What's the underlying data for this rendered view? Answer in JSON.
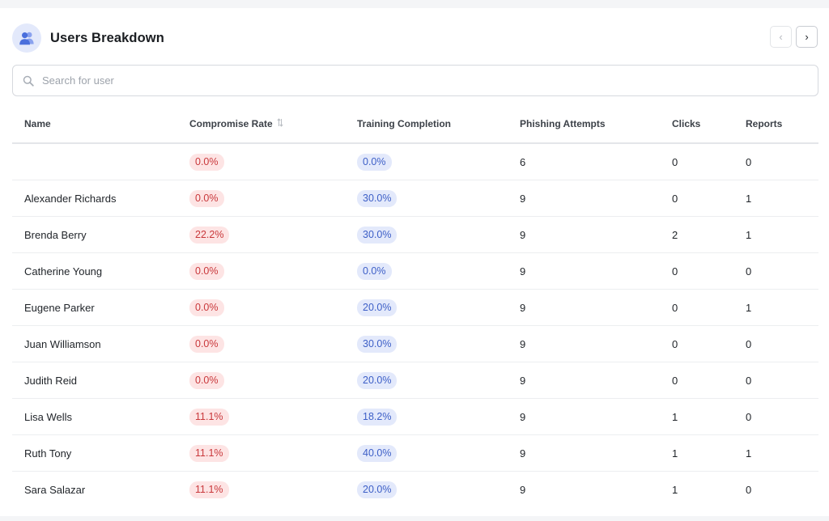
{
  "header": {
    "title": "Users Breakdown",
    "icon": "users-icon",
    "prev_label": "‹",
    "next_label": "›"
  },
  "search": {
    "placeholder": "Search for user",
    "value": ""
  },
  "table": {
    "columns": [
      "Name",
      "Compromise Rate",
      "Training Completion",
      "Phishing Attempts",
      "Clicks",
      "Reports"
    ],
    "rows": [
      {
        "name": "",
        "compromise_rate": "0.0%",
        "training_completion": "0.0%",
        "phishing_attempts": "6",
        "clicks": "0",
        "reports": "0"
      },
      {
        "name": "Alexander Richards",
        "compromise_rate": "0.0%",
        "training_completion": "30.0%",
        "phishing_attempts": "9",
        "clicks": "0",
        "reports": "1"
      },
      {
        "name": "Brenda Berry",
        "compromise_rate": "22.2%",
        "training_completion": "30.0%",
        "phishing_attempts": "9",
        "clicks": "2",
        "reports": "1"
      },
      {
        "name": "Catherine Young",
        "compromise_rate": "0.0%",
        "training_completion": "0.0%",
        "phishing_attempts": "9",
        "clicks": "0",
        "reports": "0"
      },
      {
        "name": "Eugene Parker",
        "compromise_rate": "0.0%",
        "training_completion": "20.0%",
        "phishing_attempts": "9",
        "clicks": "0",
        "reports": "1"
      },
      {
        "name": "Juan Williamson",
        "compromise_rate": "0.0%",
        "training_completion": "30.0%",
        "phishing_attempts": "9",
        "clicks": "0",
        "reports": "0"
      },
      {
        "name": "Judith Reid",
        "compromise_rate": "0.0%",
        "training_completion": "20.0%",
        "phishing_attempts": "9",
        "clicks": "0",
        "reports": "0"
      },
      {
        "name": "Lisa Wells",
        "compromise_rate": "11.1%",
        "training_completion": "18.2%",
        "phishing_attempts": "9",
        "clicks": "1",
        "reports": "0"
      },
      {
        "name": "Ruth Tony",
        "compromise_rate": "11.1%",
        "training_completion": "40.0%",
        "phishing_attempts": "9",
        "clicks": "1",
        "reports": "1"
      },
      {
        "name": "Sara Salazar",
        "compromise_rate": "11.1%",
        "training_completion": "20.0%",
        "phishing_attempts": "9",
        "clicks": "1",
        "reports": "0"
      }
    ]
  },
  "colors": {
    "compromise_pill_bg": "#fde4e4",
    "compromise_pill_text": "#c9383b",
    "training_pill_bg": "#e3e9fb",
    "training_pill_text": "#3d5fc7",
    "accent": "#4a6fdc"
  }
}
